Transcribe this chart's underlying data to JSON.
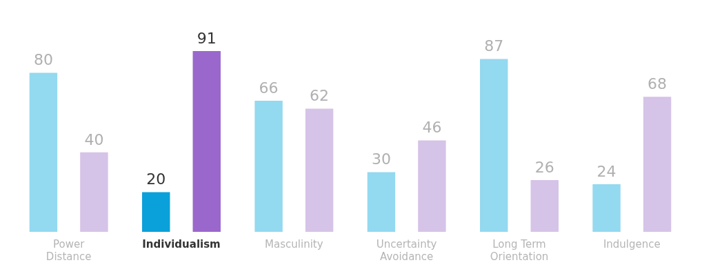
{
  "chart_data": {
    "type": "bar",
    "categories": [
      "Power Distance",
      "Individualism",
      "Masculinity",
      "Uncertainty Avoidance",
      "Long Term Orientation",
      "Indulgence"
    ],
    "series": [
      {
        "colors": [
          "#93d9f0",
          "#0aa0da",
          "#93d9f0",
          "#93d9f0",
          "#93d9f0",
          "#93d9f0"
        ],
        "values": [
          80,
          20,
          66,
          30,
          87,
          24
        ]
      },
      {
        "colors": [
          "#d6c3e8",
          "#9a68cc",
          "#d6c3e8",
          "#d6c3e8",
          "#d6c3e8",
          "#d6c3e8"
        ],
        "values": [
          40,
          91,
          62,
          46,
          26,
          68
        ]
      }
    ],
    "data_labels": true,
    "grid": false,
    "legend": false
  }
}
